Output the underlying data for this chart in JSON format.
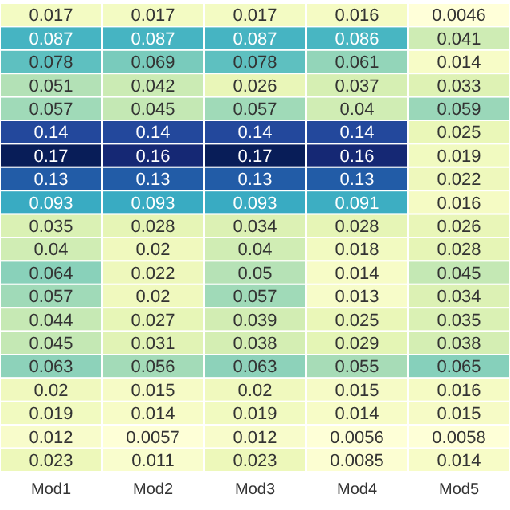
{
  "chart_data": {
    "type": "heatmap",
    "categories": [
      "Mod1",
      "Mod2",
      "Mod3",
      "Mod4",
      "Mod5"
    ],
    "y_categories": [
      null,
      null,
      null,
      null,
      null,
      null,
      null,
      null,
      null,
      null,
      null,
      null,
      null,
      null,
      null,
      null,
      null,
      null,
      null,
      null
    ],
    "data_labels": true,
    "cells": [
      [
        0.017,
        0.017,
        0.017,
        0.016,
        0.0046
      ],
      [
        0.087,
        0.087,
        0.087,
        0.086,
        0.041
      ],
      [
        0.078,
        0.069,
        0.078,
        0.061,
        0.014
      ],
      [
        0.051,
        0.042,
        0.026,
        0.037,
        0.033
      ],
      [
        0.057,
        0.045,
        0.057,
        0.04,
        0.059
      ],
      [
        0.14,
        0.14,
        0.14,
        0.14,
        0.025
      ],
      [
        0.17,
        0.16,
        0.17,
        0.16,
        0.019
      ],
      [
        0.13,
        0.13,
        0.13,
        0.13,
        0.022
      ],
      [
        0.093,
        0.093,
        0.093,
        0.091,
        0.016
      ],
      [
        0.035,
        0.028,
        0.034,
        0.028,
        0.026
      ],
      [
        0.04,
        0.02,
        0.04,
        0.018,
        0.028
      ],
      [
        0.064,
        0.022,
        0.05,
        0.014,
        0.045
      ],
      [
        0.057,
        0.02,
        0.057,
        0.013,
        0.034
      ],
      [
        0.044,
        0.027,
        0.039,
        0.025,
        0.035
      ],
      [
        0.045,
        0.031,
        0.038,
        0.029,
        0.038
      ],
      [
        0.063,
        0.056,
        0.063,
        0.055,
        0.065
      ],
      [
        0.02,
        0.015,
        0.02,
        0.015,
        0.016
      ],
      [
        0.019,
        0.014,
        0.019,
        0.014,
        0.015
      ],
      [
        0.012,
        0.0057,
        0.012,
        0.0056,
        0.0058
      ],
      [
        0.023,
        0.011,
        0.023,
        0.0085,
        0.014
      ]
    ]
  }
}
